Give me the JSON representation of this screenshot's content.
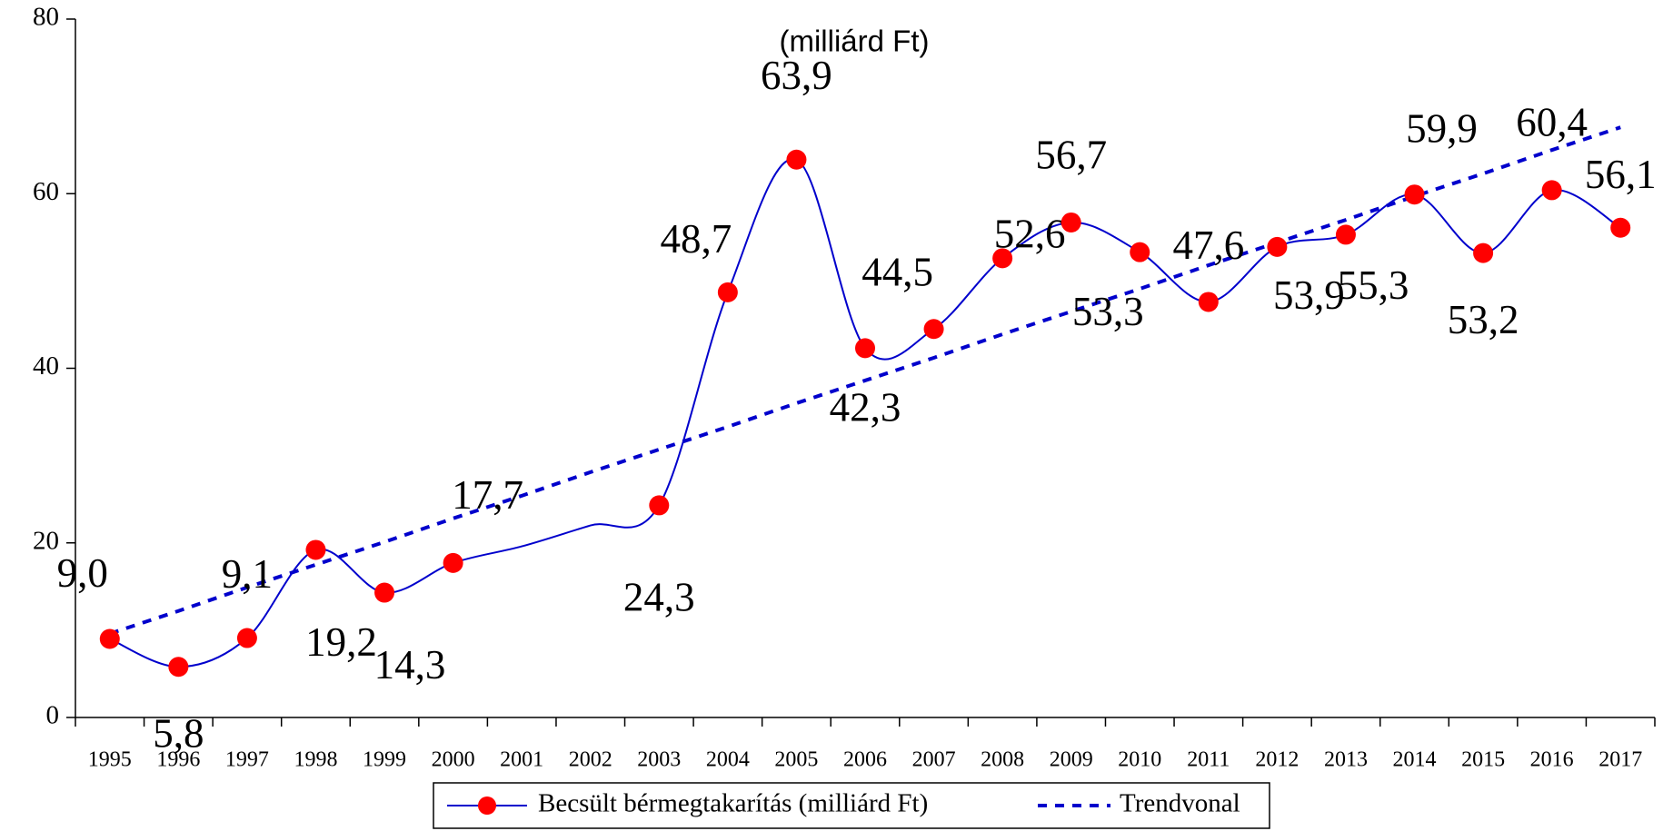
{
  "chart_data": {
    "type": "line",
    "title": "(milliárd Ft)",
    "categories": [
      "1995",
      "1996",
      "1997",
      "1998",
      "1999",
      "2000",
      "2001",
      "2002",
      "2003",
      "2004",
      "2005",
      "2006",
      "2007",
      "2008",
      "2009",
      "2010",
      "2011",
      "2012",
      "2013",
      "2014",
      "2015",
      "2016",
      "2017"
    ],
    "series": [
      {
        "name": "Becsült bérmegtakarítás (milliárd Ft)",
        "color": "#0000cc",
        "values": [
          9.0,
          5.8,
          9.1,
          19.2,
          14.3,
          17.7,
          19.6,
          22.0,
          24.3,
          48.7,
          63.9,
          42.3,
          44.5,
          52.6,
          56.7,
          53.3,
          47.6,
          53.9,
          55.3,
          59.9,
          53.2,
          60.4,
          56.1
        ],
        "value_labels": [
          "9,0",
          "5,8",
          "9,1",
          "19,2",
          "14,3",
          "17,7",
          null,
          null,
          "24,3",
          "48,7",
          "63,9",
          "42,3",
          "44,5",
          "52,6",
          "56,7",
          "53,3",
          "47,6",
          "53,9",
          "55,3",
          "59,9",
          "53,2",
          "60,4",
          "56,1"
        ],
        "marker_color": "#ff0000"
      },
      {
        "name": "Trendvonal",
        "color": "#0000cc",
        "dashed": true,
        "values": [
          9.6,
          12.2,
          14.9,
          17.5,
          20.1,
          22.8,
          25.4,
          28.1,
          30.7,
          33.3,
          36.0,
          38.6,
          41.2,
          43.9,
          46.5,
          49.1,
          51.8,
          54.4,
          57.0,
          59.7,
          62.3,
          65.0,
          67.6
        ]
      }
    ],
    "ylim": [
      0,
      80
    ],
    "yticks": [
      0,
      20,
      40,
      60,
      80
    ],
    "grid": false
  }
}
